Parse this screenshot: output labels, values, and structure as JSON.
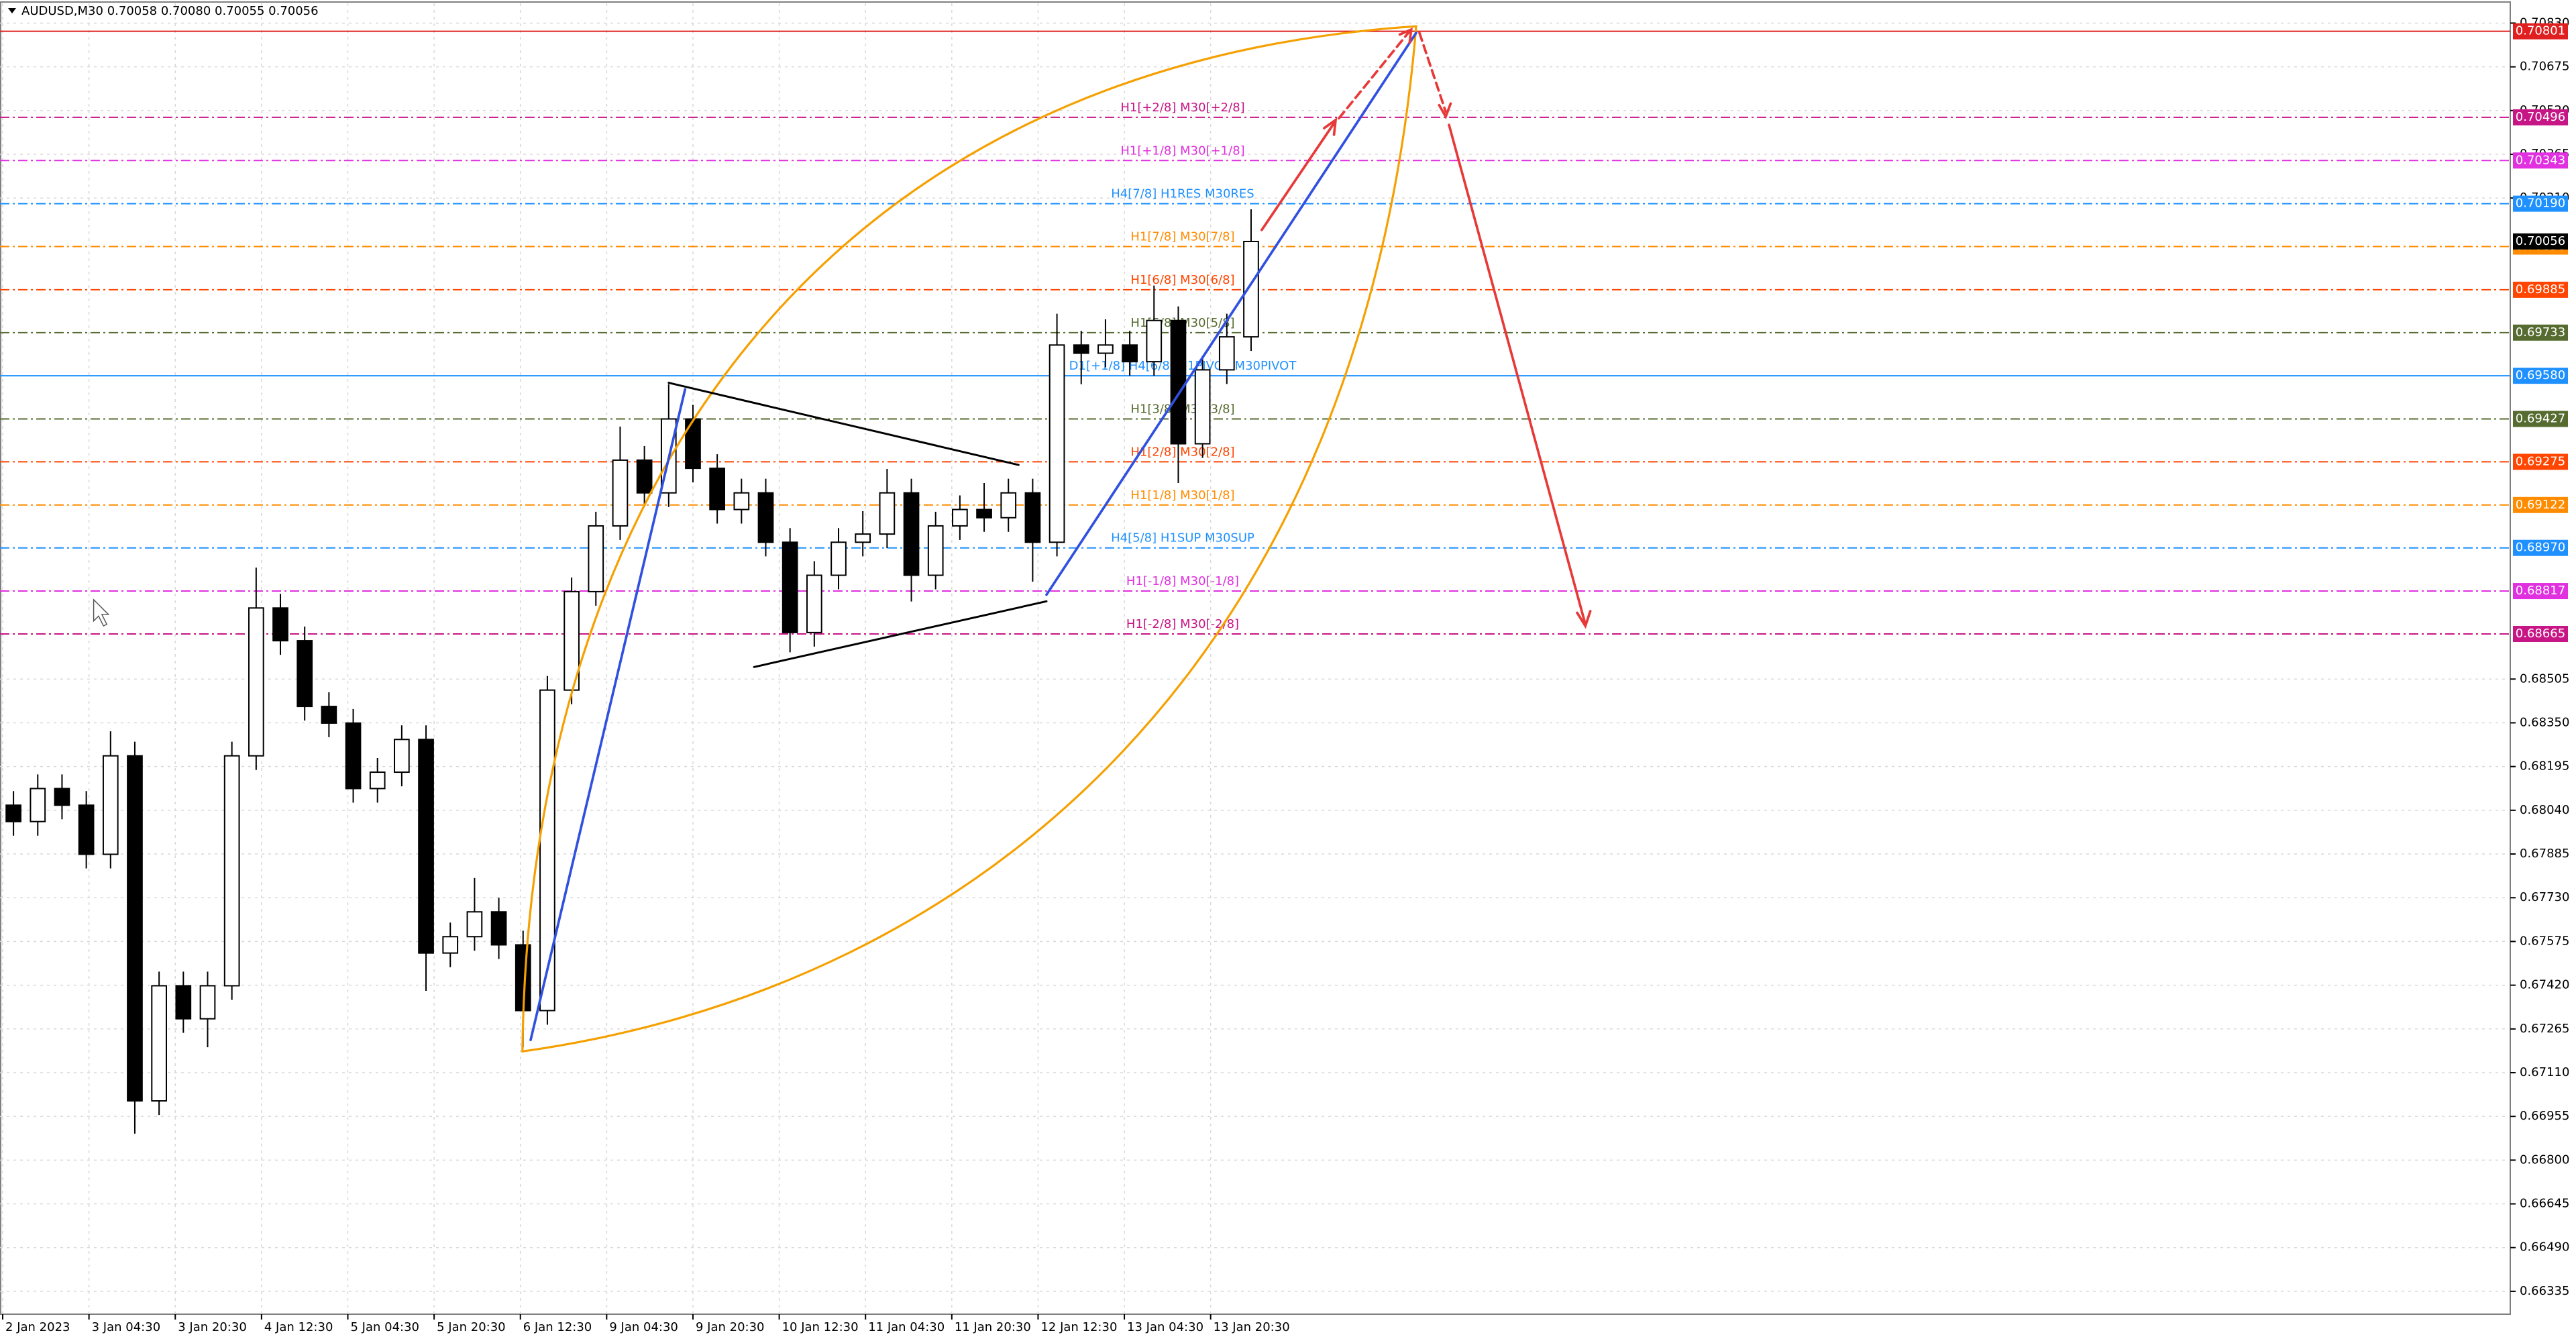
{
  "chart_data": {
    "type": "candlestick",
    "title": "AUDUSD,M30  0.70058 0.70080 0.70055 0.70056",
    "xlim": [
      -1,
      930
    ],
    "ylim": [
      0.66254,
      0.709
    ],
    "grid": true,
    "xticks": [
      {
        "value": 0,
        "label": "2 Jan 2023"
      },
      {
        "value": 32,
        "label": "3 Jan 04:30"
      },
      {
        "value": 64,
        "label": "3 Jan 20:30"
      },
      {
        "value": 96,
        "label": "4 Jan 12:30"
      },
      {
        "value": 128,
        "label": "5 Jan 04:30"
      },
      {
        "value": 160,
        "label": "5 Jan 20:30"
      },
      {
        "value": 192,
        "label": "6 Jan 12:30"
      },
      {
        "value": 224,
        "label": "9 Jan 04:30"
      },
      {
        "value": 256,
        "label": "9 Jan 20:30"
      },
      {
        "value": 288,
        "label": "10 Jan 12:30"
      },
      {
        "value": 320,
        "label": "11 Jan 04:30"
      },
      {
        "value": 352,
        "label": "11 Jan 20:30"
      },
      {
        "value": 384,
        "label": "12 Jan 12:30"
      },
      {
        "value": 416,
        "label": "13 Jan 04:30"
      },
      {
        "value": 448,
        "label": "13 Jan 20:30"
      }
    ],
    "yticks": [
      {
        "value": 0.7083,
        "label": "0.70830"
      },
      0.70675,
      {
        "value": 0.7052,
        "label": "0.70520"
      },
      0.70365,
      {
        "value": 0.7021,
        "label": "0.70210"
      },
      0.68505,
      {
        "value": 0.6835,
        "label": "0.68350"
      },
      0.68195,
      {
        "value": 0.6804,
        "label": "0.68040"
      },
      0.67885,
      {
        "value": 0.6773,
        "label": "0.67730"
      },
      0.67575,
      {
        "value": 0.6742,
        "label": "0.67420"
      },
      0.67265,
      {
        "value": 0.6711,
        "label": "0.67110"
      },
      0.66955,
      {
        "value": 0.668,
        "label": "0.66800"
      },
      0.66645,
      {
        "value": 0.6649,
        "label": "0.66490"
      },
      0.66335
    ],
    "x": [
      4,
      13,
      22,
      31,
      40,
      49,
      58,
      67,
      76,
      85,
      94,
      103,
      112,
      121,
      130,
      139,
      148,
      157,
      166,
      175,
      184,
      193,
      202,
      211,
      220,
      229,
      238,
      247,
      256,
      265,
      274,
      283,
      292,
      301,
      310,
      319,
      328,
      337,
      346,
      355,
      364,
      373,
      382,
      391,
      400,
      409,
      418,
      427,
      436,
      445,
      454,
      463
    ],
    "open": [
      0.68058,
      0.68,
      0.68117,
      0.68058,
      0.67884,
      0.68233,
      0.6701,
      0.67418,
      0.67301,
      0.67418,
      0.68233,
      0.68757,
      0.68641,
      0.68408,
      0.68349,
      0.68117,
      0.68175,
      0.68291,
      0.67534,
      0.67592,
      0.6768,
      0.67563,
      0.6733,
      0.68466,
      0.68815,
      0.69048,
      0.69281,
      0.69165,
      0.69427,
      0.69252,
      0.69106,
      0.69165,
      0.6899,
      0.6867,
      0.68873,
      0.6899,
      0.69019,
      0.69165,
      0.68873,
      0.69048,
      0.69106,
      0.69077,
      0.69165,
      0.6899,
      0.69689,
      0.6966,
      0.69689,
      0.6963,
      0.69776,
      0.69339,
      0.69601,
      0.69718
    ],
    "high": [
      0.68108,
      0.68167,
      0.68167,
      0.68108,
      0.6832,
      0.68283,
      0.67468,
      0.67468,
      0.67468,
      0.68283,
      0.689,
      0.68807,
      0.68691,
      0.68458,
      0.68399,
      0.68225,
      0.68341,
      0.68341,
      0.67642,
      0.678,
      0.6773,
      0.67613,
      0.68516,
      0.68865,
      0.69098,
      0.694,
      0.69331,
      0.6955,
      0.69477,
      0.69302,
      0.69215,
      0.69215,
      0.6904,
      0.68923,
      0.6904,
      0.691,
      0.6925,
      0.69215,
      0.69098,
      0.69156,
      0.692,
      0.69215,
      0.69215,
      0.698,
      0.69739,
      0.6978,
      0.69739,
      0.699,
      0.69826,
      0.69651,
      0.698,
      0.7017
    ],
    "low": [
      0.6795,
      0.6795,
      0.68008,
      0.67834,
      0.67834,
      0.66894,
      0.6696,
      0.67251,
      0.672,
      0.67368,
      0.68183,
      0.68591,
      0.68358,
      0.68299,
      0.68067,
      0.68067,
      0.68125,
      0.674,
      0.67484,
      0.67542,
      0.67513,
      0.672,
      0.6728,
      0.68416,
      0.68765,
      0.68998,
      0.69115,
      0.69115,
      0.69202,
      0.69056,
      0.69056,
      0.6894,
      0.686,
      0.6862,
      0.68823,
      0.6894,
      0.68969,
      0.6878,
      0.68823,
      0.68998,
      0.69027,
      0.69027,
      0.6885,
      0.6894,
      0.6955,
      0.6961,
      0.6958,
      0.6958,
      0.692,
      0.69289,
      0.69551,
      0.69668
    ],
    "close": [
      0.68,
      0.68117,
      0.68058,
      0.67884,
      0.68233,
      0.6701,
      0.67418,
      0.67301,
      0.67418,
      0.68233,
      0.68757,
      0.68641,
      0.68408,
      0.68349,
      0.68117,
      0.68175,
      0.68291,
      0.67534,
      0.67592,
      0.6768,
      0.67563,
      0.6733,
      0.68466,
      0.68815,
      0.69048,
      0.69281,
      0.69165,
      0.69427,
      0.69252,
      0.69106,
      0.69165,
      0.6899,
      0.6867,
      0.68873,
      0.6899,
      0.69019,
      0.69165,
      0.68873,
      0.69048,
      0.69106,
      0.69077,
      0.69165,
      0.6899,
      0.69689,
      0.6966,
      0.69689,
      0.6963,
      0.69776,
      0.69339,
      0.69601,
      0.69718,
      0.70056
    ],
    "last_price": 0.70056,
    "levels": [
      {
        "price": 0.70801,
        "color": "#e02020",
        "style": "solid"
      },
      {
        "price": 0.70496,
        "label": "H1[+2/8] M30[+2/8]",
        "color": "#c71585",
        "style": "dashdot"
      },
      {
        "price": 0.70343,
        "label": "H1[+1/8] M30[+1/8]",
        "color": "#e030e0",
        "style": "dashdot"
      },
      {
        "price": {
          "value": 0.7019,
          "label": "0.70190"
        },
        "label": "H4[7/8] H1RES M30RES",
        "color": "#1e90ff",
        "style": "dashdot"
      },
      {
        "price": 0.70038,
        "label": "H1[7/8] M30[7/8]",
        "color": "#ff8c00",
        "style": "dashdot"
      },
      {
        "price": 0.69885,
        "label": "H1[6/8] M30[6/8]",
        "color": "#ff4500",
        "style": "dashdot"
      },
      {
        "price": 0.69733,
        "label": "H1[5/8] M30[5/8]",
        "color": "#556b2f",
        "style": "dashdot"
      },
      {
        "price": {
          "value": 0.6958,
          "label": "0.69580"
        },
        "label": "D1[+1/8] H4[6/8] H1PIVOT M30PIVOT",
        "color": "#1e90ff",
        "style": "solid"
      },
      {
        "price": 0.69427,
        "label": "H1[3/8] M30[3/8]",
        "color": "#556b2f",
        "style": "dashdot"
      },
      {
        "price": 0.69275,
        "label": "H1[2/8] M30[2/8]",
        "color": "#ff4500",
        "style": "dashdot"
      },
      {
        "price": 0.69122,
        "label": "H1[1/8] M30[1/8]",
        "color": "#ff8c00",
        "style": "dashdot"
      },
      {
        "price": {
          "value": 0.6897,
          "label": "0.68970"
        },
        "label": "H4[5/8] H1SUP M30SUP",
        "color": "#1e90ff",
        "style": "dashdot"
      },
      {
        "price": 0.68817,
        "label": "H1[-1/8] M30[-1/8]",
        "color": "#e030e0",
        "style": "dashdot"
      },
      {
        "price": 0.68665,
        "label": "H1[-2/8] M30[-2/8]",
        "color": "#c71585",
        "style": "dashdot"
      }
    ]
  }
}
